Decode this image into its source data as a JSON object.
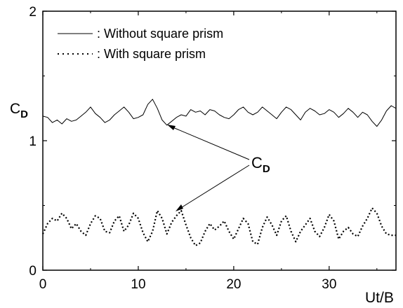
{
  "chart_data": {
    "type": "line",
    "xlabel": "Ut/B",
    "ylabel": "C",
    "ylabel_sub": "D",
    "xlim": [
      0,
      37
    ],
    "ylim": [
      0,
      2
    ],
    "xticks": [
      0,
      10,
      20,
      30
    ],
    "yticks": [
      0,
      1,
      2
    ],
    "grid": false,
    "legend_position": "top-left",
    "annotation": {
      "text": "C",
      "sub": "D"
    },
    "series": [
      {
        "name": ": Without square prism",
        "style": "solid",
        "color": "#000000",
        "x": [
          0,
          0.5,
          1,
          1.5,
          2,
          2.5,
          3,
          3.5,
          4,
          4.5,
          5,
          5.5,
          6,
          6.5,
          7,
          7.5,
          8,
          8.5,
          9,
          9.5,
          10,
          10.5,
          11,
          11.5,
          12,
          12.5,
          13,
          13.5,
          14,
          14.5,
          15,
          15.5,
          16,
          16.5,
          17,
          17.5,
          18,
          18.5,
          19,
          19.5,
          20,
          20.5,
          21,
          21.5,
          22,
          22.5,
          23,
          23.5,
          24,
          24.5,
          25,
          25.5,
          26,
          26.5,
          27,
          27.5,
          28,
          28.5,
          29,
          29.5,
          30,
          30.5,
          31,
          31.5,
          32,
          32.5,
          33,
          33.5,
          34,
          34.5,
          35,
          35.5,
          36,
          36.5,
          37
        ],
        "values": [
          1.19,
          1.18,
          1.14,
          1.16,
          1.13,
          1.17,
          1.15,
          1.16,
          1.19,
          1.22,
          1.26,
          1.21,
          1.18,
          1.14,
          1.16,
          1.2,
          1.23,
          1.26,
          1.22,
          1.17,
          1.18,
          1.2,
          1.28,
          1.32,
          1.25,
          1.16,
          1.12,
          1.15,
          1.18,
          1.2,
          1.19,
          1.24,
          1.22,
          1.23,
          1.2,
          1.24,
          1.23,
          1.2,
          1.18,
          1.17,
          1.2,
          1.24,
          1.26,
          1.22,
          1.2,
          1.22,
          1.26,
          1.23,
          1.2,
          1.17,
          1.22,
          1.26,
          1.24,
          1.2,
          1.16,
          1.22,
          1.25,
          1.23,
          1.2,
          1.21,
          1.24,
          1.22,
          1.18,
          1.21,
          1.25,
          1.22,
          1.18,
          1.22,
          1.2,
          1.15,
          1.11,
          1.16,
          1.23,
          1.27,
          1.25
        ]
      },
      {
        "name": ": With square prism",
        "style": "dotted",
        "color": "#000000",
        "x": [
          0,
          0.5,
          1,
          1.5,
          2,
          2.5,
          3,
          3.5,
          4,
          4.5,
          5,
          5.5,
          6,
          6.5,
          7,
          7.5,
          8,
          8.5,
          9,
          9.5,
          10,
          10.5,
          11,
          11.5,
          12,
          12.5,
          13,
          13.5,
          14,
          14.5,
          15,
          15.5,
          16,
          16.5,
          17,
          17.5,
          18,
          18.5,
          19,
          19.5,
          20,
          20.5,
          21,
          21.5,
          22,
          22.5,
          23,
          23.5,
          24,
          24.5,
          25,
          25.5,
          26,
          26.5,
          27,
          27.5,
          28,
          28.5,
          29,
          29.5,
          30,
          30.5,
          31,
          31.5,
          32,
          32.5,
          33,
          33.5,
          34,
          34.5,
          35,
          35.5,
          36,
          36.5,
          37
        ],
        "values": [
          0.28,
          0.36,
          0.4,
          0.38,
          0.44,
          0.4,
          0.32,
          0.36,
          0.3,
          0.27,
          0.36,
          0.42,
          0.4,
          0.3,
          0.29,
          0.38,
          0.42,
          0.3,
          0.35,
          0.44,
          0.4,
          0.29,
          0.22,
          0.3,
          0.46,
          0.4,
          0.28,
          0.37,
          0.42,
          0.46,
          0.35,
          0.25,
          0.19,
          0.21,
          0.3,
          0.36,
          0.31,
          0.34,
          0.38,
          0.3,
          0.24,
          0.32,
          0.4,
          0.36,
          0.22,
          0.2,
          0.33,
          0.41,
          0.35,
          0.27,
          0.38,
          0.42,
          0.3,
          0.22,
          0.3,
          0.35,
          0.4,
          0.3,
          0.26,
          0.33,
          0.43,
          0.38,
          0.24,
          0.3,
          0.33,
          0.28,
          0.26,
          0.34,
          0.4,
          0.48,
          0.44,
          0.34,
          0.28,
          0.27,
          0.27
        ]
      }
    ]
  }
}
